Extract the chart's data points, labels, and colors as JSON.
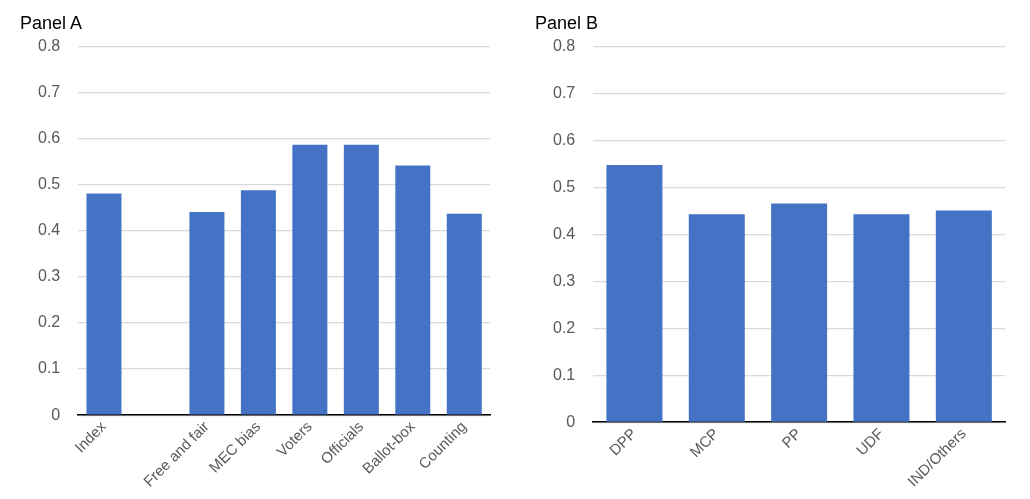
{
  "chart_data": [
    {
      "type": "bar",
      "title": "Panel A",
      "categories": [
        "Index",
        null,
        "Free and fair",
        "MEC bias",
        "Voters",
        "Officials",
        "Ballot-box",
        "Counting"
      ],
      "values": [
        0.481,
        null,
        0.441,
        0.488,
        0.587,
        0.587,
        0.542,
        0.437
      ],
      "color": "#4472c4",
      "ylim": [
        0,
        0.8
      ],
      "yticks": [
        0,
        0.1,
        0.2,
        0.3,
        0.4,
        0.5,
        0.6,
        0.7,
        0.8
      ],
      "grid": "y",
      "legend": false
    },
    {
      "type": "bar",
      "title": "Panel B",
      "categories": [
        "DPP",
        "MCP",
        "PP",
        "UDF",
        "IND/Others"
      ],
      "values": [
        0.548,
        0.443,
        0.466,
        0.443,
        0.451
      ],
      "color": "#4472c4",
      "ylim": [
        0,
        0.8
      ],
      "yticks": [
        0,
        0.1,
        0.2,
        0.3,
        0.4,
        0.5,
        0.6,
        0.7,
        0.8
      ],
      "grid": "y",
      "legend": false
    }
  ]
}
